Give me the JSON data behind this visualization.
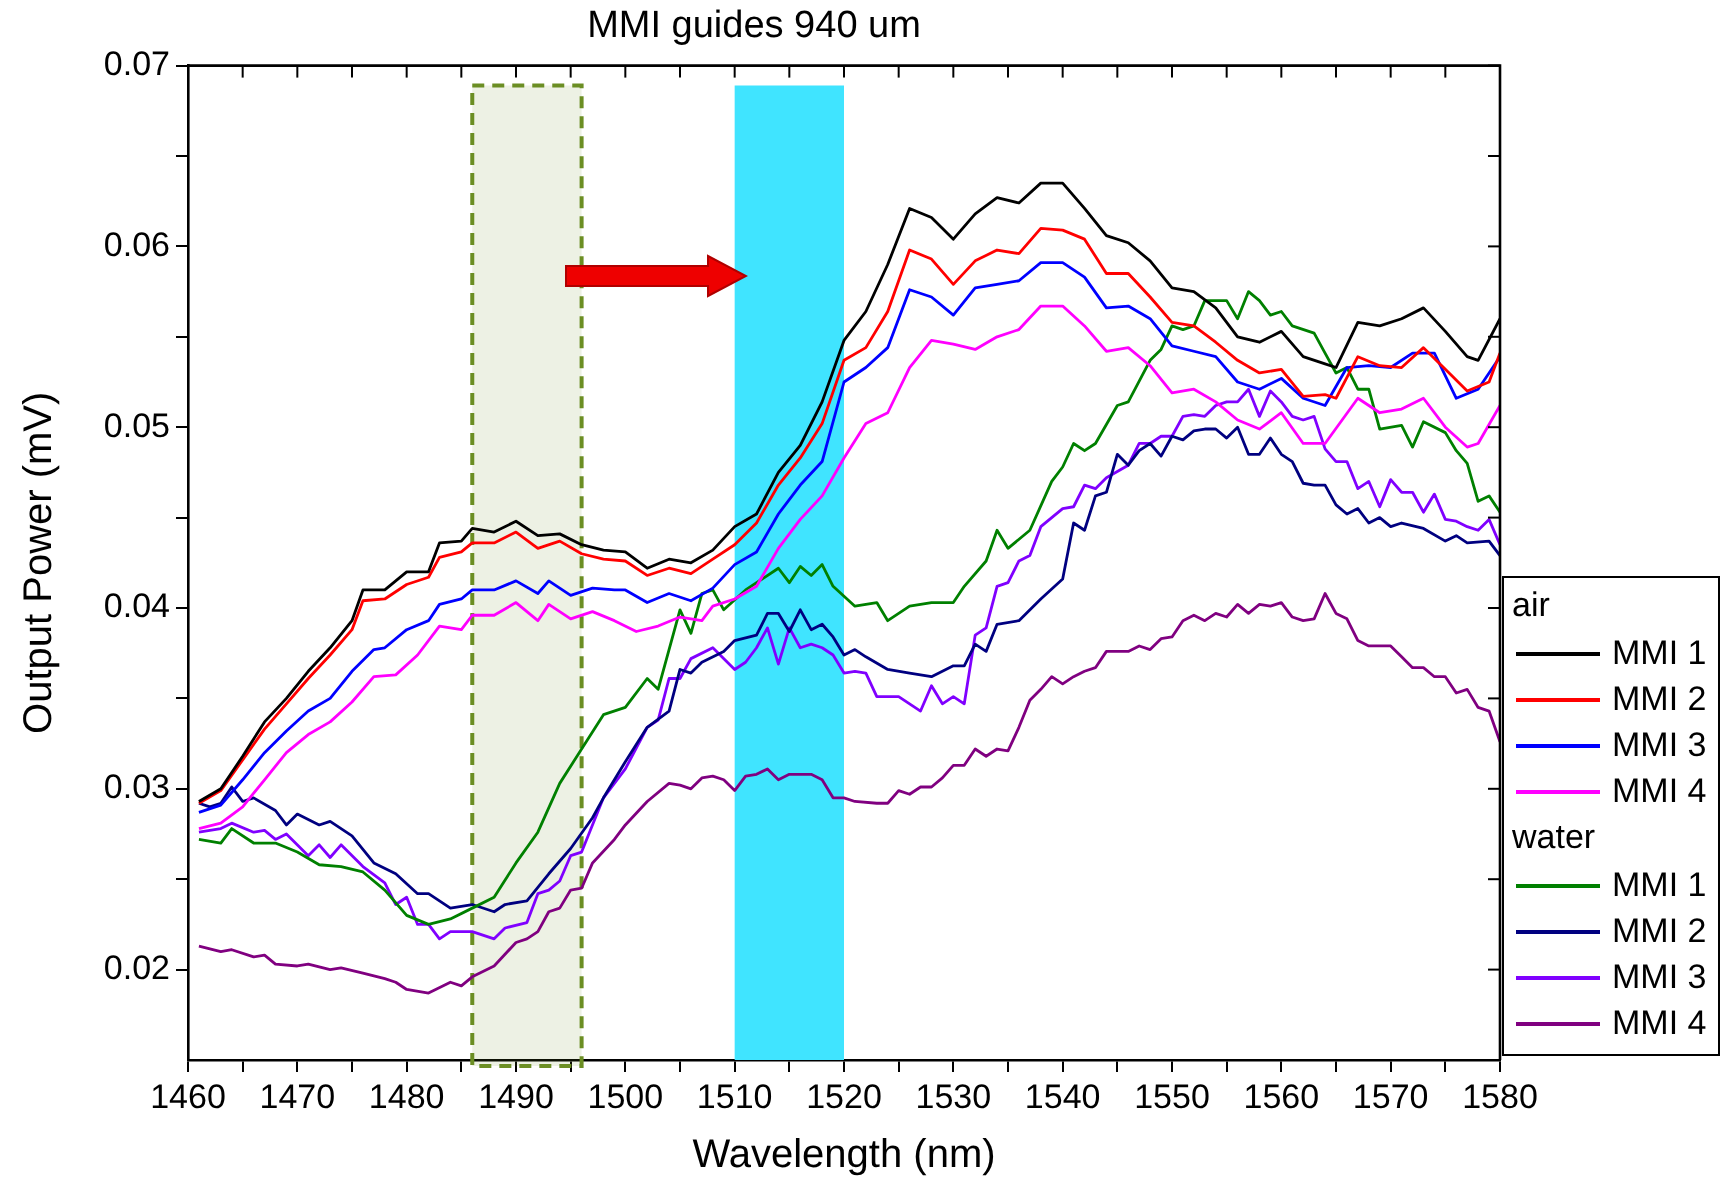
{
  "chart_data": {
    "type": "line",
    "title": "MMI guides 940 um",
    "xlabel": "Wavelength (nm)",
    "ylabel": "Output Power (mV)",
    "xlim": [
      1460,
      1580
    ],
    "ylim": [
      0.015,
      0.07
    ],
    "xticks": [
      1460,
      {
        "value": 1465,
        "label": null
      },
      1470,
      {
        "value": 1475,
        "label": null
      },
      1480,
      {
        "value": 1485,
        "label": null
      },
      1490,
      {
        "value": 1495,
        "label": null
      },
      1500,
      {
        "value": 1505,
        "label": null
      },
      1510,
      {
        "value": 1515,
        "label": null
      },
      1520,
      {
        "value": 1525,
        "label": null
      },
      1530,
      {
        "value": 1535,
        "label": null
      },
      1540,
      {
        "value": 1545,
        "label": null
      },
      1550,
      {
        "value": 1555,
        "label": null
      },
      1560,
      {
        "value": 1565,
        "label": null
      },
      1570,
      {
        "value": 1575,
        "label": null
      },
      1580
    ],
    "yticks": [
      0.02,
      {
        "value": 0.025,
        "label": null
      },
      0.03,
      {
        "value": 0.035,
        "label": null
      },
      0.04,
      {
        "value": 0.045,
        "label": null
      },
      0.05,
      {
        "value": 0.055,
        "label": null
      },
      0.06,
      {
        "value": 0.065,
        "label": null
      },
      0.07
    ],
    "grid": false,
    "legend": "right",
    "marker": "none",
    "line_style": "solid",
    "annotations": [
      "air",
      "water"
    ],
    "bands": [
      {
        "axis": "x",
        "from": 1486,
        "to": 1496,
        "color": "#6b8e23"
      },
      {
        "axis": "x",
        "from": 1510,
        "to": 1520,
        "color": "#40e4ff"
      }
    ],
    "series": [
      {
        "name": "MMI 1",
        "color": "#000000",
        "x": [
          1461,
          1463,
          1465,
          1467,
          1469,
          1471,
          1473,
          1475,
          1476,
          1478,
          1480,
          1482,
          1483,
          1485,
          1486,
          1488,
          1490,
          1492,
          1494,
          1496,
          1498,
          1500,
          1502,
          1504,
          1506,
          1508,
          1510,
          1512,
          1514,
          1516,
          1518,
          1520,
          1522,
          1524,
          1526,
          1528,
          1530,
          1532,
          1534,
          1536,
          1538,
          1540,
          1542,
          1544,
          1546,
          1548,
          1550,
          1552,
          1554,
          1556,
          1558,
          1560,
          1562,
          1564,
          1565,
          1567,
          1569,
          1571,
          1573,
          1575,
          1577,
          1578,
          1580
        ],
        "values": [
          0.0293,
          0.03,
          0.0318,
          0.0337,
          0.035,
          0.0365,
          0.0378,
          0.0393,
          0.041,
          0.041,
          0.042,
          0.042,
          0.0436,
          0.0437,
          0.0444,
          0.0442,
          0.0448,
          0.044,
          0.0441,
          0.0435,
          0.0432,
          0.0431,
          0.0422,
          0.0427,
          0.0425,
          0.0432,
          0.0445,
          0.0452,
          0.0475,
          0.049,
          0.0514,
          0.0548,
          0.0564,
          0.059,
          0.0621,
          0.0616,
          0.0604,
          0.0618,
          0.0627,
          0.0624,
          0.0635,
          0.0635,
          0.0621,
          0.0606,
          0.0602,
          0.0592,
          0.0577,
          0.0575,
          0.0566,
          0.055,
          0.0547,
          0.0553,
          0.0539,
          0.0535,
          0.0533,
          0.0558,
          0.0556,
          0.056,
          0.0566,
          0.0553,
          0.0539,
          0.0537,
          0.056
        ]
      },
      {
        "name": "MMI 2",
        "color": "#ff0000",
        "x": [
          1461,
          1463,
          1465,
          1467,
          1469,
          1471,
          1473,
          1475,
          1476,
          1478,
          1480,
          1482,
          1483,
          1485,
          1486,
          1488,
          1490,
          1492,
          1494,
          1496,
          1498,
          1500,
          1502,
          1504,
          1506,
          1508,
          1510,
          1512,
          1514,
          1516,
          1518,
          1520,
          1522,
          1524,
          1526,
          1528,
          1530,
          1532,
          1534,
          1536,
          1538,
          1540,
          1542,
          1544,
          1546,
          1548,
          1550,
          1552,
          1554,
          1556,
          1558,
          1560,
          1562,
          1564,
          1565,
          1567,
          1569,
          1571,
          1573,
          1575,
          1577,
          1579,
          1580
        ],
        "values": [
          0.0292,
          0.0299,
          0.0316,
          0.0333,
          0.0347,
          0.0361,
          0.0374,
          0.0388,
          0.0404,
          0.0405,
          0.0413,
          0.0417,
          0.0428,
          0.0431,
          0.0436,
          0.0436,
          0.0442,
          0.0433,
          0.0437,
          0.043,
          0.0427,
          0.0426,
          0.0418,
          0.0422,
          0.0419,
          0.0427,
          0.0435,
          0.0447,
          0.0468,
          0.0483,
          0.0502,
          0.0537,
          0.0544,
          0.0564,
          0.0598,
          0.0593,
          0.0579,
          0.0592,
          0.0598,
          0.0596,
          0.061,
          0.0609,
          0.0604,
          0.0585,
          0.0585,
          0.0572,
          0.0558,
          0.0556,
          0.0547,
          0.0537,
          0.053,
          0.0532,
          0.0517,
          0.0518,
          0.0516,
          0.0539,
          0.0534,
          0.0533,
          0.0544,
          0.0532,
          0.052,
          0.0525,
          0.0541
        ]
      },
      {
        "name": "MMI 3",
        "color": "#0000ff",
        "x": [
          1461,
          1463,
          1465,
          1467,
          1469,
          1471,
          1473,
          1475,
          1477,
          1478,
          1480,
          1482,
          1483,
          1485,
          1486,
          1488,
          1490,
          1492,
          1493,
          1495,
          1497,
          1499,
          1500,
          1502,
          1504,
          1506,
          1508,
          1510,
          1512,
          1514,
          1516,
          1518,
          1520,
          1522,
          1524,
          1526,
          1528,
          1530,
          1532,
          1534,
          1536,
          1538,
          1540,
          1542,
          1544,
          1546,
          1548,
          1550,
          1552,
          1554,
          1556,
          1558,
          1560,
          1562,
          1564,
          1566,
          1568,
          1570,
          1572,
          1574,
          1576,
          1578,
          1580
        ],
        "values": [
          0.0287,
          0.0291,
          0.0305,
          0.032,
          0.0332,
          0.0343,
          0.035,
          0.0365,
          0.0377,
          0.0378,
          0.0388,
          0.0393,
          0.0402,
          0.0405,
          0.041,
          0.041,
          0.0415,
          0.0408,
          0.0415,
          0.0407,
          0.0411,
          0.041,
          0.041,
          0.0403,
          0.0408,
          0.0404,
          0.0411,
          0.0424,
          0.0431,
          0.0452,
          0.0468,
          0.0481,
          0.0525,
          0.0533,
          0.0544,
          0.0576,
          0.0572,
          0.0562,
          0.0577,
          0.0579,
          0.0581,
          0.0591,
          0.0591,
          0.0583,
          0.0566,
          0.0567,
          0.056,
          0.0545,
          0.0542,
          0.0539,
          0.0525,
          0.0521,
          0.0527,
          0.0516,
          0.0512,
          0.0533,
          0.0534,
          0.0533,
          0.0541,
          0.0541,
          0.0516,
          0.0521,
          0.0539
        ]
      },
      {
        "name": "MMI 4",
        "color": "#ff00ff",
        "x": [
          1461,
          1463,
          1465,
          1467,
          1469,
          1471,
          1473,
          1475,
          1477,
          1479,
          1481,
          1483,
          1485,
          1486,
          1488,
          1490,
          1492,
          1493,
          1495,
          1497,
          1499,
          1501,
          1503,
          1505,
          1507,
          1508,
          1510,
          1512,
          1514,
          1516,
          1518,
          1520,
          1522,
          1524,
          1526,
          1528,
          1530,
          1532,
          1534,
          1536,
          1538,
          1540,
          1542,
          1544,
          1546,
          1548,
          1550,
          1552,
          1554,
          1556,
          1558,
          1560,
          1562,
          1564,
          1567,
          1569,
          1571,
          1573,
          1575,
          1577,
          1578,
          1580
        ],
        "values": [
          0.0278,
          0.0281,
          0.029,
          0.0305,
          0.032,
          0.033,
          0.0337,
          0.0348,
          0.0362,
          0.0363,
          0.0374,
          0.039,
          0.0388,
          0.0396,
          0.0396,
          0.0403,
          0.0393,
          0.0402,
          0.0394,
          0.0398,
          0.0393,
          0.0387,
          0.039,
          0.0395,
          0.0393,
          0.0401,
          0.0405,
          0.0412,
          0.0433,
          0.0449,
          0.0462,
          0.0483,
          0.0502,
          0.0508,
          0.0533,
          0.0548,
          0.0546,
          0.0543,
          0.055,
          0.0554,
          0.0567,
          0.0567,
          0.0556,
          0.0542,
          0.0544,
          0.0534,
          0.0519,
          0.0521,
          0.0514,
          0.0504,
          0.0499,
          0.0508,
          0.0491,
          0.0491,
          0.0516,
          0.0508,
          0.051,
          0.0516,
          0.05,
          0.0489,
          0.0491,
          0.0512
        ]
      },
      {
        "name": "MMI 1",
        "color": "#008000",
        "x": [
          1461,
          1463,
          1464,
          1466,
          1468,
          1470,
          1472,
          1474,
          1476,
          1478,
          1480,
          1482,
          1484,
          1486,
          1488,
          1490,
          1492,
          1494,
          1496,
          1498,
          1500,
          1502,
          1503,
          1505,
          1506,
          1507,
          1508,
          1509,
          1511,
          1512,
          1514,
          1515,
          1516,
          1517,
          1518,
          1519,
          1521,
          1523,
          1524,
          1526,
          1528,
          1530,
          1531,
          1533,
          1534,
          1535,
          1537,
          1539,
          1540,
          1541,
          1542,
          1543,
          1545,
          1546,
          1548,
          1549,
          1550,
          1551,
          1552,
          1553,
          1555,
          1556,
          1557,
          1558,
          1559,
          1560,
          1561,
          1563,
          1564,
          1565,
          1566,
          1567,
          1568,
          1569,
          1571,
          1572,
          1573,
          1575,
          1576,
          1577,
          1578,
          1579,
          1580
        ],
        "values": [
          0.0272,
          0.027,
          0.0278,
          0.027,
          0.027,
          0.0265,
          0.0258,
          0.0257,
          0.0254,
          0.0244,
          0.023,
          0.0225,
          0.0228,
          0.0234,
          0.024,
          0.0259,
          0.0276,
          0.0303,
          0.0322,
          0.0341,
          0.0345,
          0.0361,
          0.0355,
          0.0399,
          0.0386,
          0.0408,
          0.041,
          0.0399,
          0.041,
          0.0414,
          0.0422,
          0.0414,
          0.0423,
          0.0418,
          0.0424,
          0.0412,
          0.0401,
          0.0403,
          0.0393,
          0.0401,
          0.0403,
          0.0403,
          0.0412,
          0.0426,
          0.0443,
          0.0433,
          0.0443,
          0.047,
          0.0478,
          0.0491,
          0.0487,
          0.0491,
          0.0512,
          0.0514,
          0.0537,
          0.0543,
          0.0556,
          0.0554,
          0.0556,
          0.057,
          0.057,
          0.056,
          0.0575,
          0.057,
          0.0562,
          0.0564,
          0.0556,
          0.0552,
          0.0541,
          0.053,
          0.0533,
          0.0521,
          0.0521,
          0.0499,
          0.0501,
          0.0489,
          0.0503,
          0.0497,
          0.0487,
          0.048,
          0.0459,
          0.0462,
          0.0453
        ]
      },
      {
        "name": "MMI 2",
        "color": "#000080",
        "x": [
          1461,
          1462,
          1463,
          1464,
          1465,
          1466,
          1468,
          1469,
          1470,
          1472,
          1473,
          1475,
          1477,
          1479,
          1481,
          1482,
          1484,
          1486,
          1488,
          1489,
          1491,
          1493,
          1495,
          1497,
          1498,
          1500,
          1502,
          1504,
          1505,
          1506,
          1507,
          1509,
          1510,
          1512,
          1513,
          1514,
          1515,
          1516,
          1517,
          1518,
          1519,
          1520,
          1521,
          1522,
          1524,
          1526,
          1528,
          1530,
          1531,
          1532,
          1533,
          1534,
          1536,
          1538,
          1540,
          1541,
          1542,
          1543,
          1544,
          1545,
          1546,
          1547,
          1548,
          1549,
          1550,
          1551,
          1552,
          1553,
          1554,
          1555,
          1556,
          1557,
          1558,
          1559,
          1560,
          1561,
          1562,
          1563,
          1564,
          1565,
          1566,
          1567,
          1568,
          1569,
          1570,
          1571,
          1573,
          1575,
          1576,
          1577,
          1579,
          1580
        ],
        "values": [
          0.0292,
          0.029,
          0.0292,
          0.0301,
          0.0293,
          0.0295,
          0.0288,
          0.028,
          0.0286,
          0.028,
          0.0282,
          0.0274,
          0.0259,
          0.0253,
          0.0242,
          0.0242,
          0.0234,
          0.0236,
          0.0232,
          0.0236,
          0.0238,
          0.0253,
          0.0267,
          0.0284,
          0.0295,
          0.0315,
          0.0334,
          0.0343,
          0.0366,
          0.0364,
          0.037,
          0.0376,
          0.0382,
          0.0385,
          0.0397,
          0.0397,
          0.0387,
          0.0399,
          0.0388,
          0.0391,
          0.0384,
          0.0374,
          0.0377,
          0.0373,
          0.0366,
          0.0364,
          0.0362,
          0.0368,
          0.0368,
          0.038,
          0.0376,
          0.0391,
          0.0393,
          0.0405,
          0.0416,
          0.0447,
          0.0443,
          0.0462,
          0.0464,
          0.0485,
          0.0479,
          0.0487,
          0.0491,
          0.0484,
          0.0495,
          0.0493,
          0.0498,
          0.0499,
          0.0499,
          0.0494,
          0.05,
          0.0485,
          0.0485,
          0.0494,
          0.0485,
          0.0481,
          0.0469,
          0.0468,
          0.0468,
          0.0457,
          0.0452,
          0.0455,
          0.0447,
          0.045,
          0.0445,
          0.0447,
          0.0444,
          0.0437,
          0.044,
          0.0436,
          0.0437,
          0.0429
        ]
      },
      {
        "name": "MMI 3",
        "color": "#8000ff",
        "x": [
          1461,
          1463,
          1464,
          1466,
          1467,
          1468,
          1469,
          1471,
          1472,
          1473,
          1474,
          1476,
          1478,
          1479,
          1480,
          1481,
          1482,
          1483,
          1484,
          1486,
          1488,
          1489,
          1491,
          1492,
          1493,
          1494,
          1495,
          1496,
          1498,
          1500,
          1502,
          1503,
          1504,
          1505,
          1506,
          1508,
          1510,
          1511,
          1512,
          1513,
          1514,
          1515,
          1516,
          1517,
          1518,
          1519,
          1520,
          1521,
          1522,
          1523,
          1525,
          1527,
          1528,
          1529,
          1530,
          1531,
          1532,
          1533,
          1534,
          1535,
          1536,
          1537,
          1538,
          1540,
          1541,
          1542,
          1543,
          1544,
          1546,
          1547,
          1548,
          1549,
          1550,
          1551,
          1552,
          1553,
          1554,
          1555,
          1556,
          1557,
          1558,
          1559,
          1560,
          1561,
          1562,
          1563,
          1564,
          1565,
          1566,
          1567,
          1568,
          1569,
          1570,
          1571,
          1572,
          1573,
          1574,
          1575,
          1576,
          1577,
          1578,
          1579,
          1580
        ],
        "values": [
          0.0276,
          0.0278,
          0.0281,
          0.0276,
          0.0277,
          0.0272,
          0.0275,
          0.0263,
          0.0269,
          0.0262,
          0.0269,
          0.0257,
          0.0248,
          0.0236,
          0.024,
          0.0225,
          0.0225,
          0.0217,
          0.0221,
          0.0221,
          0.0217,
          0.0223,
          0.0226,
          0.0242,
          0.0244,
          0.0249,
          0.0263,
          0.0265,
          0.0295,
          0.0311,
          0.0334,
          0.0338,
          0.0361,
          0.0361,
          0.0372,
          0.0378,
          0.0366,
          0.037,
          0.0378,
          0.0389,
          0.0369,
          0.0389,
          0.0378,
          0.038,
          0.0378,
          0.0374,
          0.0364,
          0.0365,
          0.0364,
          0.0351,
          0.0351,
          0.0343,
          0.0357,
          0.0347,
          0.0351,
          0.0347,
          0.0385,
          0.0389,
          0.0412,
          0.0414,
          0.0426,
          0.0429,
          0.0445,
          0.0455,
          0.0456,
          0.0468,
          0.0466,
          0.0472,
          0.0479,
          0.0491,
          0.0491,
          0.0495,
          0.0495,
          0.0506,
          0.0507,
          0.0506,
          0.0512,
          0.0514,
          0.0514,
          0.0521,
          0.0506,
          0.052,
          0.0514,
          0.0506,
          0.0504,
          0.0506,
          0.0488,
          0.0481,
          0.0481,
          0.0466,
          0.047,
          0.0456,
          0.0471,
          0.0464,
          0.0464,
          0.0453,
          0.0463,
          0.0449,
          0.0448,
          0.0445,
          0.0443,
          0.0449,
          0.0435
        ]
      },
      {
        "name": "MMI 4",
        "color": "#800080",
        "x": [
          1461,
          1463,
          1464,
          1466,
          1467,
          1468,
          1470,
          1471,
          1473,
          1474,
          1476,
          1478,
          1479,
          1480,
          1482,
          1484,
          1485,
          1486,
          1488,
          1490,
          1491,
          1492,
          1493,
          1494,
          1495,
          1496,
          1497,
          1499,
          1500,
          1502,
          1504,
          1505,
          1506,
          1507,
          1508,
          1509,
          1510,
          1511,
          1512,
          1513,
          1514,
          1515,
          1517,
          1518,
          1519,
          1520,
          1521,
          1523,
          1524,
          1525,
          1526,
          1527,
          1528,
          1529,
          1530,
          1531,
          1532,
          1533,
          1534,
          1535,
          1536,
          1537,
          1538,
          1539,
          1540,
          1541,
          1542,
          1543,
          1544,
          1545,
          1546,
          1547,
          1548,
          1549,
          1550,
          1551,
          1552,
          1553,
          1554,
          1555,
          1556,
          1557,
          1558,
          1559,
          1560,
          1561,
          1562,
          1563,
          1564,
          1565,
          1566,
          1567,
          1568,
          1569,
          1570,
          1571,
          1572,
          1573,
          1574,
          1575,
          1576,
          1577,
          1578,
          1579,
          1580
        ],
        "values": [
          0.0213,
          0.021,
          0.0211,
          0.0207,
          0.0208,
          0.0203,
          0.0202,
          0.0203,
          0.02,
          0.0201,
          0.0198,
          0.0195,
          0.0193,
          0.0189,
          0.0187,
          0.0193,
          0.0191,
          0.0196,
          0.0202,
          0.0215,
          0.0217,
          0.0221,
          0.0232,
          0.0234,
          0.0244,
          0.0245,
          0.0259,
          0.0272,
          0.028,
          0.0293,
          0.0303,
          0.0302,
          0.03,
          0.0306,
          0.0307,
          0.0305,
          0.0299,
          0.0307,
          0.0308,
          0.0311,
          0.0305,
          0.0308,
          0.0308,
          0.0305,
          0.0295,
          0.0295,
          0.0293,
          0.0292,
          0.0292,
          0.0299,
          0.0297,
          0.0301,
          0.0301,
          0.0306,
          0.0313,
          0.0313,
          0.0322,
          0.0318,
          0.0322,
          0.0321,
          0.0334,
          0.0349,
          0.0355,
          0.0362,
          0.0358,
          0.0362,
          0.0365,
          0.0367,
          0.0376,
          0.0376,
          0.0376,
          0.0379,
          0.0377,
          0.0383,
          0.0384,
          0.0393,
          0.0396,
          0.0393,
          0.0397,
          0.0395,
          0.0402,
          0.0397,
          0.0402,
          0.0401,
          0.0403,
          0.0395,
          0.0393,
          0.0394,
          0.0408,
          0.0397,
          0.0394,
          0.0382,
          0.0379,
          0.0379,
          0.0379,
          0.0373,
          0.0367,
          0.0367,
          0.0362,
          0.0362,
          0.0353,
          0.0355,
          0.0345,
          0.0343,
          0.0326
        ]
      }
    ]
  }
}
